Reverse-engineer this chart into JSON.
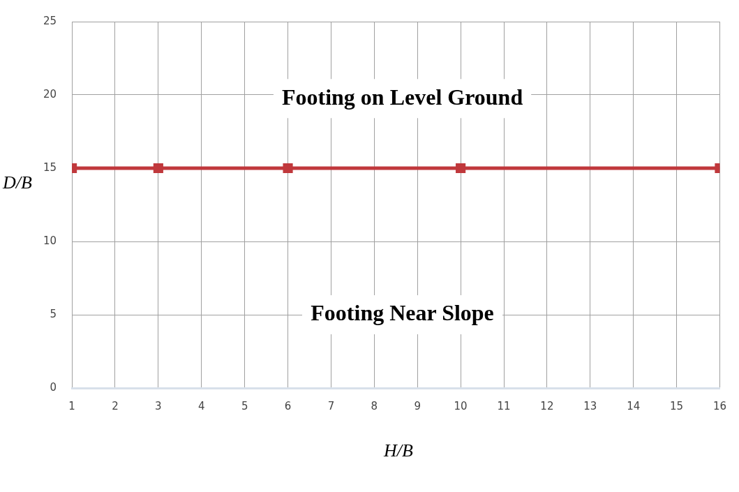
{
  "chart_data": {
    "type": "line",
    "xlabel": "H/B",
    "ylabel": "D/B",
    "x": [
      1,
      3,
      6,
      10,
      16
    ],
    "series": [
      {
        "color": "#c0383c",
        "values": [
          15,
          15,
          15,
          15,
          15
        ]
      }
    ],
    "xlim": [
      1,
      16
    ],
    "xticks": [
      1,
      2,
      3,
      4,
      5,
      6,
      7,
      8,
      9,
      10,
      11,
      12,
      13,
      14,
      15,
      16
    ],
    "ylim": [
      0,
      25
    ],
    "yticks": [
      0,
      5,
      10,
      15,
      20,
      25
    ],
    "grid": true,
    "legend": false,
    "marker": "square",
    "line_style": "solid",
    "annotations": [
      "Footing on Level Ground",
      "Footing Near Slope"
    ]
  }
}
